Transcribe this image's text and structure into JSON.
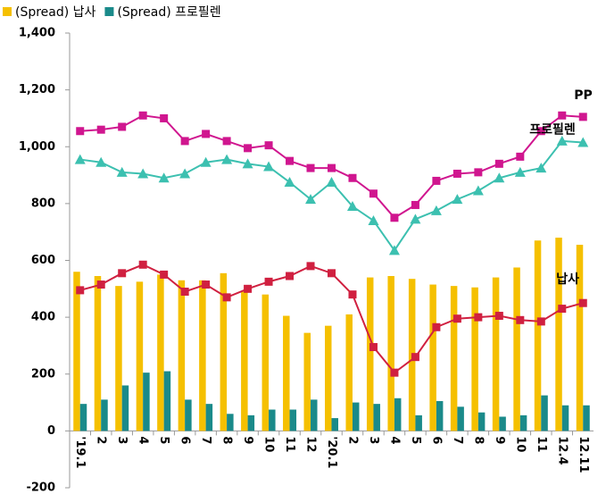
{
  "chart_data": {
    "type": "bar",
    "categories": [
      "'19.1",
      "2",
      "3",
      "4",
      "5",
      "6",
      "7",
      "8",
      "9",
      "10",
      "11",
      "12",
      "'20.1",
      "2",
      "3",
      "4",
      "5",
      "6",
      "7",
      "8",
      "9",
      "10",
      "11",
      "12.4",
      "12.11"
    ],
    "series": [
      {
        "name": "(Spread) 납사",
        "type": "bar",
        "color": "#f5c000",
        "values": [
          560,
          545,
          510,
          525,
          550,
          530,
          530,
          555,
          490,
          480,
          405,
          345,
          370,
          410,
          540,
          545,
          535,
          515,
          510,
          505,
          540,
          575,
          670,
          680,
          655
        ]
      },
      {
        "name": "(Spread) 프로필렌",
        "type": "bar",
        "color": "#1a8a8a",
        "values": [
          95,
          110,
          160,
          205,
          210,
          110,
          95,
          60,
          55,
          75,
          75,
          110,
          45,
          100,
          95,
          115,
          55,
          105,
          85,
          65,
          50,
          55,
          125,
          90,
          90
        ]
      },
      {
        "name": "PP",
        "type": "line",
        "marker": "square",
        "color": "#d0168f",
        "values": [
          1055,
          1060,
          1070,
          1110,
          1100,
          1020,
          1045,
          1020,
          995,
          1005,
          950,
          925,
          925,
          890,
          835,
          750,
          795,
          880,
          905,
          910,
          940,
          965,
          1055,
          1110,
          1105
        ]
      },
      {
        "name": "프로필렌",
        "type": "line",
        "marker": "triangle",
        "color": "#3cc0b0",
        "values": [
          955,
          945,
          910,
          905,
          890,
          905,
          945,
          955,
          940,
          930,
          875,
          815,
          875,
          790,
          740,
          635,
          745,
          775,
          815,
          845,
          890,
          910,
          925,
          1020,
          1015
        ]
      },
      {
        "name": "납사",
        "type": "line",
        "marker": "square",
        "color": "#d02040",
        "values": [
          495,
          515,
          555,
          585,
          550,
          490,
          515,
          470,
          500,
          525,
          545,
          580,
          555,
          480,
          295,
          205,
          260,
          365,
          395,
          400,
          405,
          390,
          385,
          430,
          450
        ]
      }
    ],
    "ylim": [
      -200,
      1400
    ],
    "yticks": [
      -200,
      0,
      200,
      400,
      600,
      800,
      {
        "value": 1000,
        "label": "1,000"
      },
      {
        "value": 1200,
        "label": "1,200"
      },
      {
        "value": 1400,
        "label": "1,400"
      }
    ],
    "grid": false
  }
}
